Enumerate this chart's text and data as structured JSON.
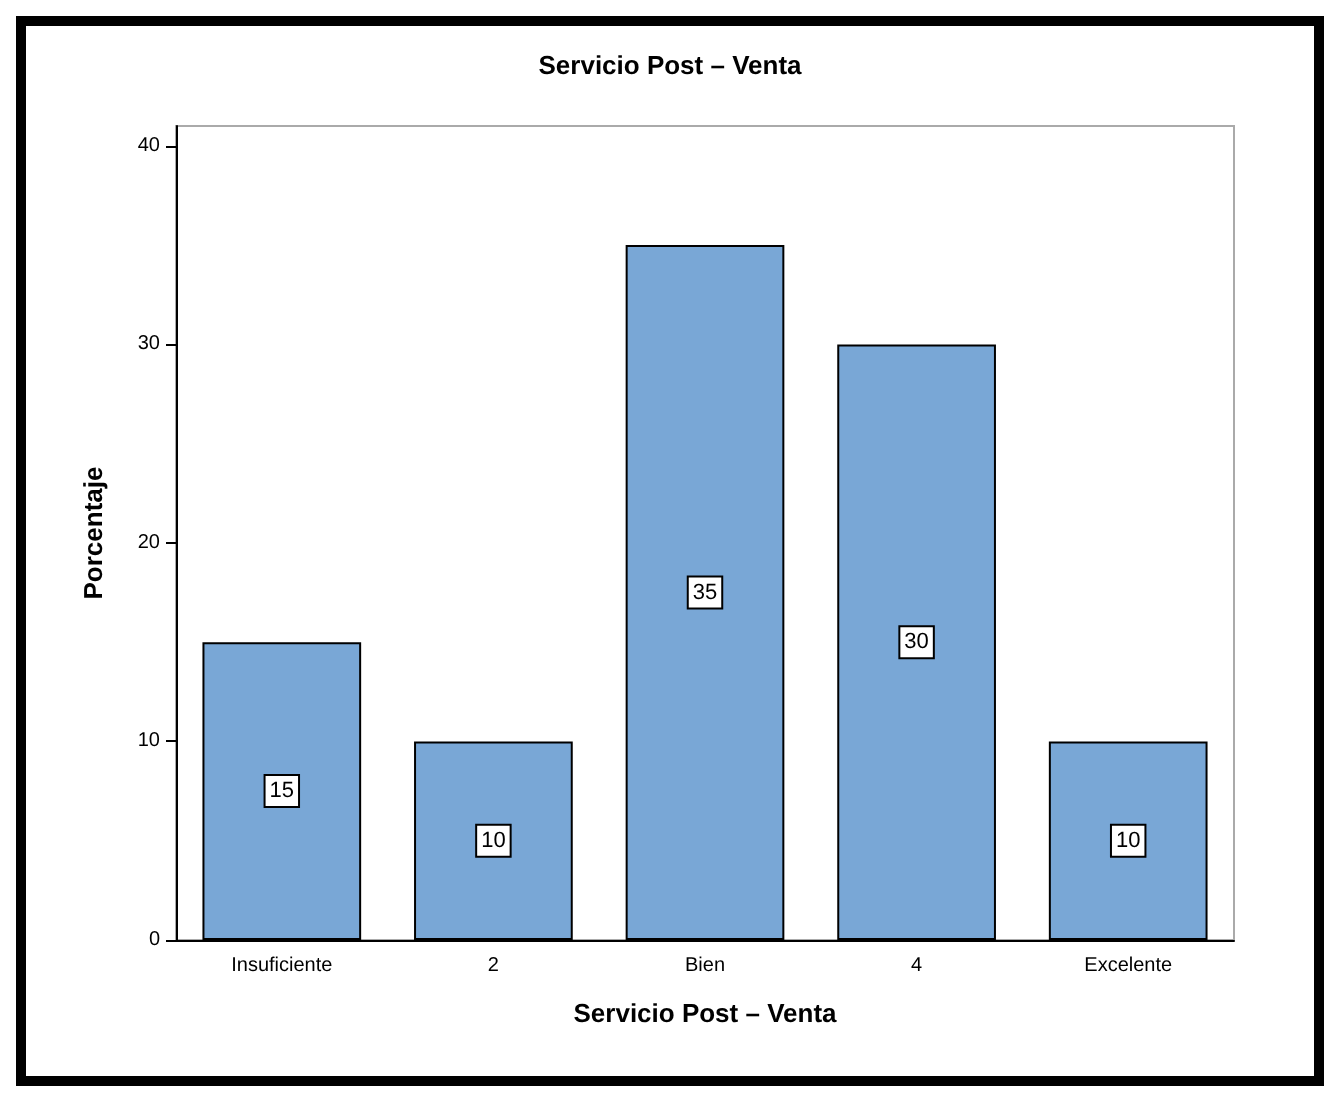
{
  "chart_data": {
    "type": "bar",
    "title": "Servicio Post – Venta",
    "xlabel": "Servicio Post – Venta",
    "ylabel": "Porcentaje",
    "categories": [
      "Insuficiente",
      "2",
      "Bien",
      "4",
      "Excelente"
    ],
    "values": [
      15,
      10,
      35,
      30,
      10
    ],
    "color": "#79a7d6",
    "ylim": [
      0,
      41
    ],
    "yticks": [
      0,
      10,
      20,
      30,
      40
    ],
    "grid": false,
    "data_labels": true
  }
}
